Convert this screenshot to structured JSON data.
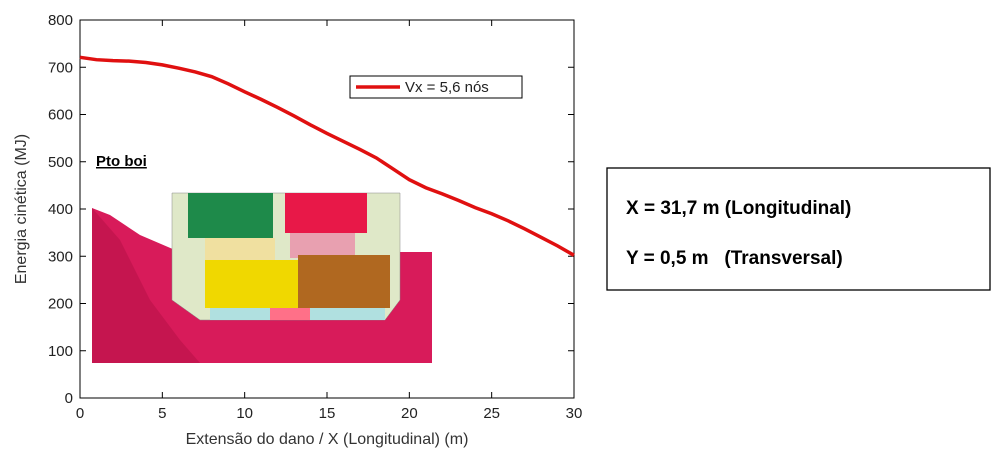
{
  "chart_data": {
    "type": "line",
    "xlabel": "Extensão do dano / X (Longitudinal) (m)",
    "ylabel": "Energia cinética (MJ)",
    "x": [
      0,
      1,
      2,
      3,
      4,
      5,
      6,
      7,
      8,
      9,
      10,
      11,
      12,
      13,
      14,
      15,
      16,
      17,
      18,
      19,
      20,
      21,
      22,
      23,
      24,
      25,
      26,
      27,
      28,
      29,
      30
    ],
    "series": [
      {
        "name": "Vx = 5,6 nós",
        "color": "#e01010",
        "values": [
          721,
          716,
          714,
          713,
          710,
          705,
          698,
          690,
          680,
          665,
          648,
          632,
          615,
          597,
          578,
          560,
          543,
          526,
          508,
          485,
          462,
          445,
          432,
          418,
          403,
          390,
          375,
          358,
          340,
          322,
          302
        ]
      }
    ],
    "xlim": [
      0,
      30
    ],
    "ylim": [
      0,
      800
    ],
    "xticks": [
      0,
      5,
      10,
      15,
      20,
      25,
      30
    ],
    "yticks": [
      0,
      100,
      200,
      300,
      400,
      500,
      600,
      700,
      800
    ],
    "grid": false,
    "legend_position": "upper right",
    "annotations": [
      "Pto boi"
    ]
  },
  "info_box": {
    "lines": [
      "X = 31,7 m (Longitudinal)",
      "Y = 0,5 m   (Transversal)"
    ]
  }
}
